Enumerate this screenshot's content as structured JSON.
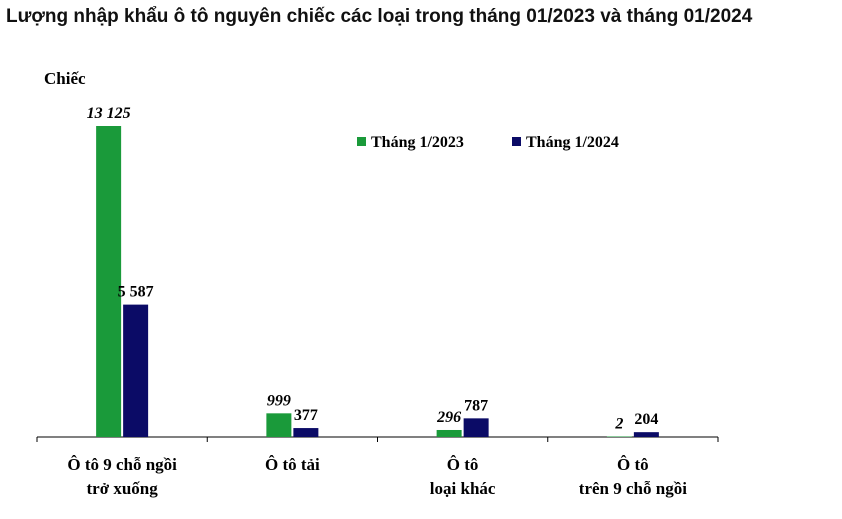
{
  "title": "Lượng nhập khẩu ô tô nguyên chiếc các loại trong tháng 01/2023 và tháng 01/2024",
  "chart_data": {
    "type": "bar",
    "title": "Lượng nhập khẩu ô tô nguyên chiếc các loại trong tháng 01/2023 và tháng 01/2024",
    "ylabel": "Chiếc",
    "xlabel": "",
    "ylim": [
      0,
      13125
    ],
    "grid": false,
    "legend_position": "top-right",
    "categories": [
      [
        "Ô tô 9 chỗ ngồi",
        "trở xuống"
      ],
      [
        "Ô tô tải"
      ],
      [
        "Ô tô",
        "loại khác"
      ],
      [
        "Ô tô",
        "trên 9 chỗ ngồi"
      ]
    ],
    "series": [
      {
        "name": "Tháng 1/2023",
        "color": "#1a9a3a",
        "values": [
          13125,
          999,
          296,
          2
        ],
        "labels": [
          "13 125",
          "999",
          "296",
          "2"
        ],
        "label_style": "italic"
      },
      {
        "name": "Tháng 1/2024",
        "color": "#0b0b66",
        "values": [
          5587,
          377,
          787,
          204
        ],
        "labels": [
          "5 587",
          "377",
          "787",
          "204"
        ],
        "label_style": "normal"
      }
    ]
  }
}
